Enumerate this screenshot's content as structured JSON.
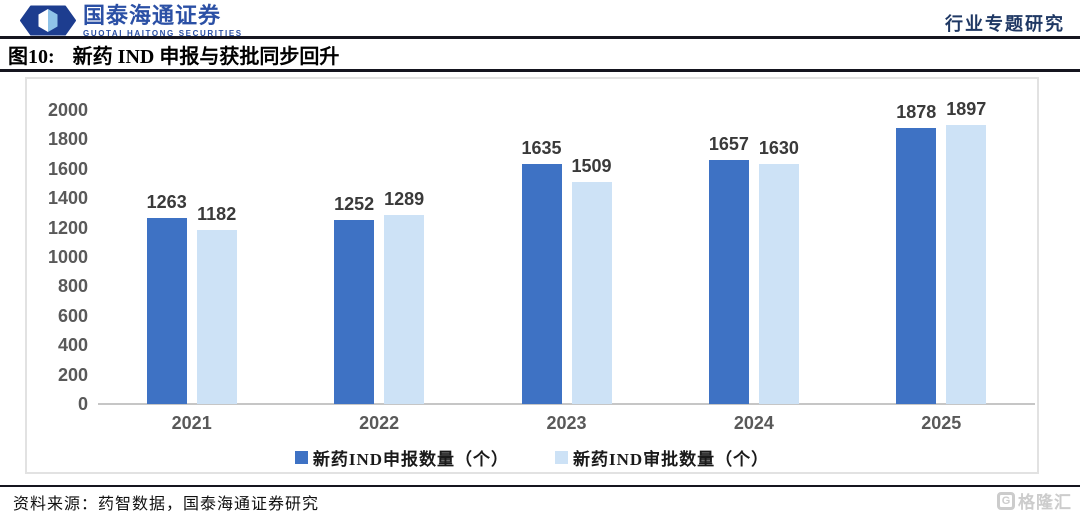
{
  "header": {
    "brand_cn": "国泰海通证券",
    "brand_en": "GUOTAI HAITONG SECURITIES",
    "report_type": "行业专题研究"
  },
  "figure": {
    "label": "图10:",
    "title": "新药 IND 申报与获批同步回升"
  },
  "chart_data": {
    "type": "bar",
    "title": "新药IND申报与获批同步回升",
    "categories": [
      "2021",
      "2022",
      "2023",
      "2024",
      "2025"
    ],
    "series": [
      {
        "name": "新药IND申报数量（个）",
        "color": "#3E72C4",
        "values": [
          1263,
          1252,
          1635,
          1657,
          1878
        ]
      },
      {
        "name": "新药IND审批数量（个）",
        "color": "#CDE2F6",
        "values": [
          1182,
          1289,
          1509,
          1630,
          1897
        ]
      }
    ],
    "ylim": [
      0,
      2000
    ],
    "ytick_step": 200,
    "grid": false,
    "legend_position": "bottom",
    "xlabel": "",
    "ylabel": ""
  },
  "footer": {
    "source": "资料来源：药智数据，国泰海通证券研究"
  },
  "watermark": {
    "icon": "G",
    "text": "格隆汇"
  },
  "colors": {
    "bar_primary": "#3E72C4",
    "bar_secondary": "#CDE2F6",
    "axis_text": "#595959",
    "brand_blue": "#2B50A5",
    "header_navy": "#1F3864"
  }
}
